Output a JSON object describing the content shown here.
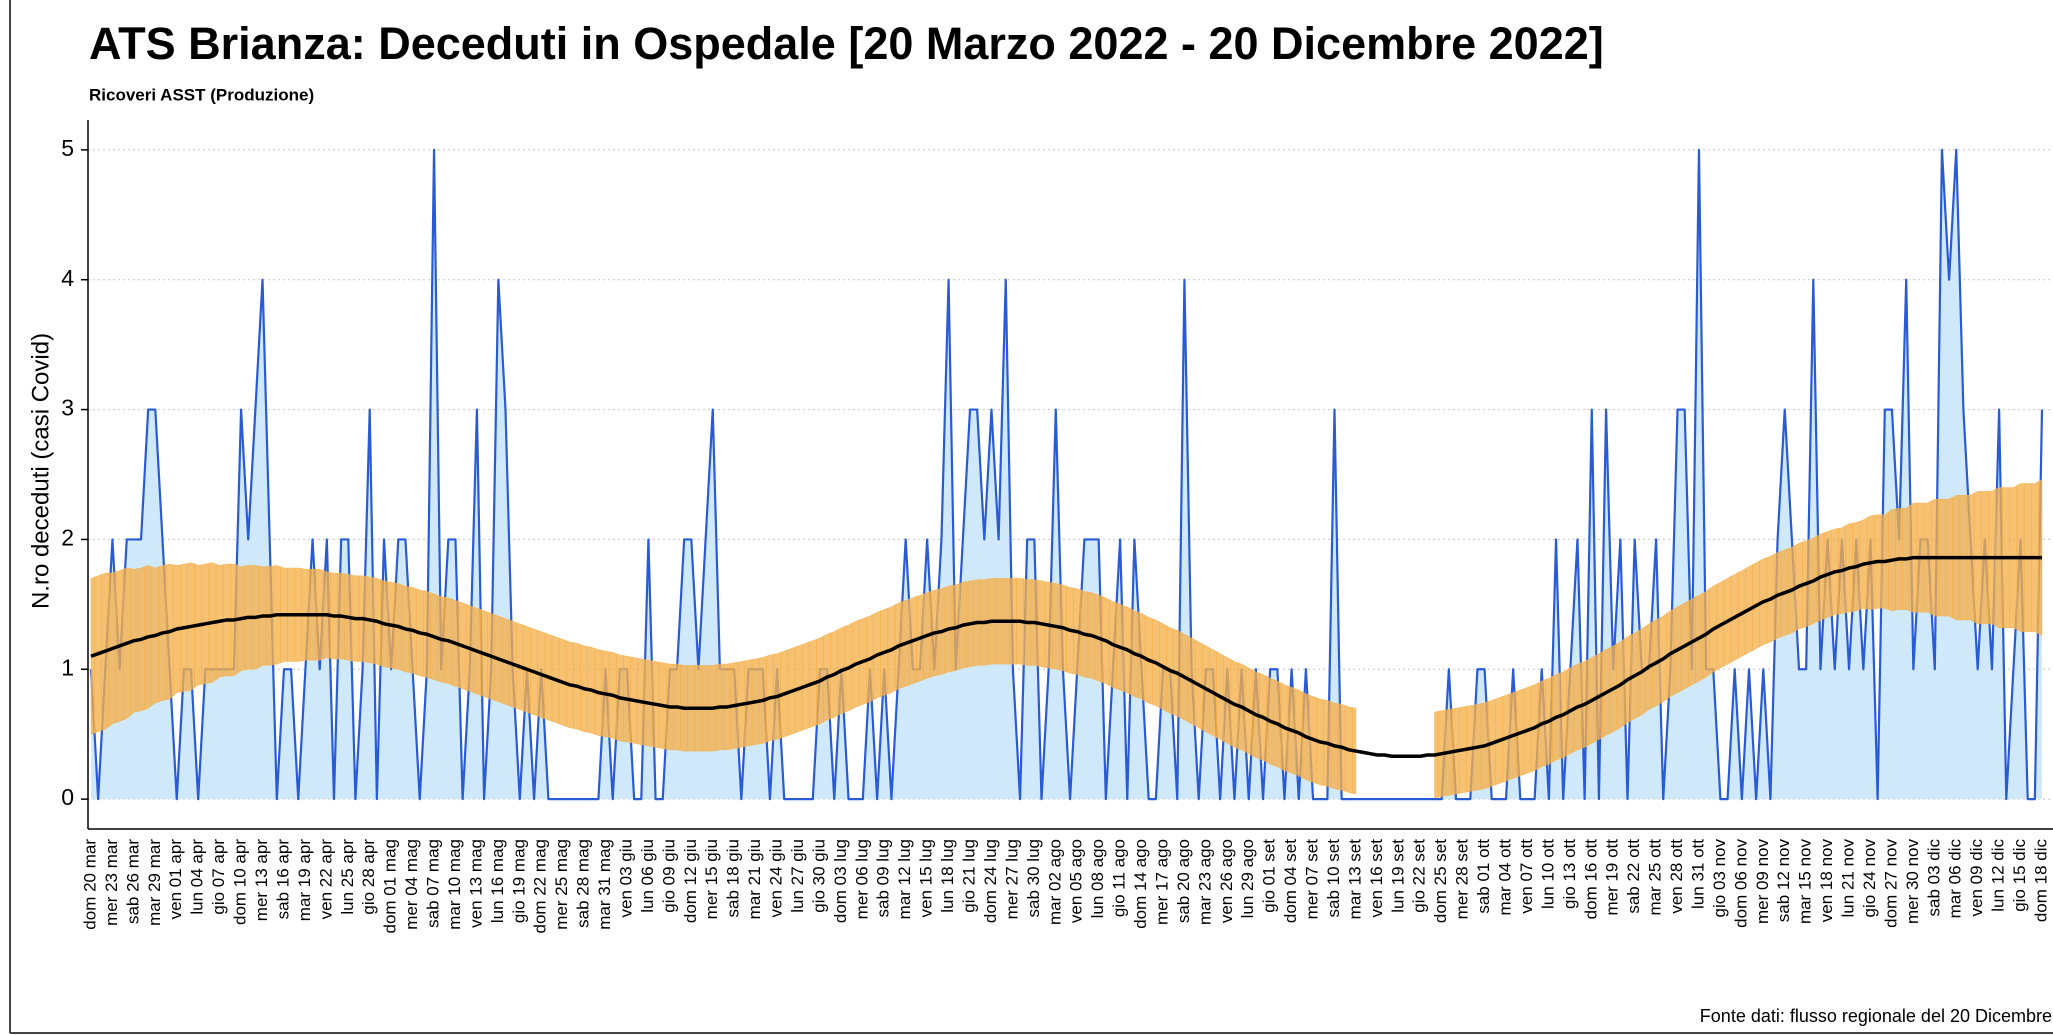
{
  "chart_data": {
    "type": "line",
    "title": "ATS Brianza: Deceduti in Ospedale [20 Marzo 2022 - 20 Dicembre 2022]",
    "subtitle": "Ricoveri ASST (Produzione)",
    "ylabel": "N.ro deceduti (casi Covid)",
    "source": "Fonte dati: flusso regionale del 20 Dicembre",
    "ylim": [
      -0.23,
      5.23
    ],
    "yticks": [
      0,
      1,
      2,
      3,
      4,
      5
    ],
    "grid": true,
    "categories": [
      "dom 20 mar",
      null,
      null,
      "mer 23 mar",
      null,
      null,
      "sab 26 mar",
      null,
      null,
      "mar 29 mar",
      null,
      null,
      "ven 01 apr",
      null,
      null,
      "lun 04 apr",
      null,
      null,
      "gio 07 apr",
      null,
      null,
      "dom 10 apr",
      null,
      null,
      "mer 13 apr",
      null,
      null,
      "sab 16 apr",
      null,
      null,
      "mar 19 apr",
      null,
      null,
      "ven 22 apr",
      null,
      null,
      "lun 25 apr",
      null,
      null,
      "gio 28 apr",
      null,
      null,
      "dom 01 mag",
      null,
      null,
      "mer 04 mag",
      null,
      null,
      "sab 07 mag",
      null,
      null,
      "mar 10 mag",
      null,
      null,
      "ven 13 mag",
      null,
      null,
      "lun 16 mag",
      null,
      null,
      "gio 19 mag",
      null,
      null,
      "dom 22 mag",
      null,
      null,
      "mer 25 mag",
      null,
      null,
      "sab 28 mag",
      null,
      null,
      "mar 31 mag",
      null,
      null,
      "ven 03 giu",
      null,
      null,
      "lun 06 giu",
      null,
      null,
      "gio 09 giu",
      null,
      null,
      "dom 12 giu",
      null,
      null,
      "mer 15 giu",
      null,
      null,
      "sab 18 giu",
      null,
      null,
      "mar 21 giu",
      null,
      null,
      "ven 24 giu",
      null,
      null,
      "lun 27 giu",
      null,
      null,
      "gio 30 giu",
      null,
      null,
      "dom 03 lug",
      null,
      null,
      "mer 06 lug",
      null,
      null,
      "sab 09 lug",
      null,
      null,
      "mar 12 lug",
      null,
      null,
      "ven 15 lug",
      null,
      null,
      "lun 18 lug",
      null,
      null,
      "gio 21 lug",
      null,
      null,
      "dom 24 lug",
      null,
      null,
      "mer 27 lug",
      null,
      null,
      "sab 30 lug",
      null,
      null,
      "mar 02 ago",
      null,
      null,
      "ven 05 ago",
      null,
      null,
      "lun 08 ago",
      null,
      null,
      "gio 11 ago",
      null,
      null,
      "dom 14 ago",
      null,
      null,
      "mer 17 ago",
      null,
      null,
      "sab 20 ago",
      null,
      null,
      "mar 23 ago",
      null,
      null,
      "ven 26 ago",
      null,
      null,
      "lun 29 ago",
      null,
      null,
      "gio 01 set",
      null,
      null,
      "dom 04 set",
      null,
      null,
      "mer 07 set",
      null,
      null,
      "sab 10 set",
      null,
      null,
      "mar 13 set",
      null,
      null,
      "ven 16 set",
      null,
      null,
      "lun 19 set",
      null,
      null,
      "gio 22 set",
      null,
      null,
      "dom 25 set",
      null,
      null,
      "mer 28 set",
      null,
      null,
      "sab 01 ott",
      null,
      null,
      "mar 04 ott",
      null,
      null,
      "ven 07 ott",
      null,
      null,
      "lun 10 ott",
      null,
      null,
      "gio 13 ott",
      null,
      null,
      "dom 16 ott",
      null,
      null,
      "mer 19 ott",
      null,
      null,
      "sab 22 ott",
      null,
      null,
      "mar 25 ott",
      null,
      null,
      "ven 28 ott",
      null,
      null,
      "lun 31 ott",
      null,
      null,
      "gio 03 nov",
      null,
      null,
      "dom 06 nov",
      null,
      null,
      "mer 09 nov",
      null,
      null,
      "sab 12 nov",
      null,
      null,
      "mar 15 nov",
      null,
      null,
      "ven 18 nov",
      null,
      null,
      "lun 21 nov",
      null,
      null,
      "gio 24 nov",
      null,
      null,
      "dom 27 nov",
      null,
      null,
      "mer 30 nov",
      null,
      null,
      "sab 03 dic",
      null,
      null,
      "mar 06 dic",
      null,
      null,
      "ven 09 dic",
      null,
      null,
      "lun 12 dic",
      null,
      null,
      "gio 15 dic",
      null,
      null,
      "dom 18 dic"
    ],
    "series": [
      {
        "color": "#2a5bd7",
        "fill": "#cfe9fa",
        "values": [
          1,
          0,
          1,
          2,
          1,
          2,
          2,
          2,
          3,
          3,
          2,
          1,
          0,
          1,
          1,
          0,
          1,
          1,
          1,
          1,
          1,
          3,
          2,
          3,
          4,
          2,
          0,
          1,
          1,
          0,
          1,
          2,
          1,
          2,
          0,
          2,
          2,
          0,
          1,
          3,
          0,
          2,
          1,
          2,
          2,
          1,
          0,
          1,
          5,
          1,
          2,
          2,
          0,
          1,
          3,
          0,
          1,
          4,
          3,
          1,
          0,
          1,
          0,
          1,
          0,
          0,
          0,
          0,
          0,
          0,
          0,
          0,
          1,
          0,
          1,
          1,
          0,
          0,
          2,
          0,
          0,
          1,
          1,
          2,
          2,
          1,
          2,
          3,
          1,
          1,
          1,
          0,
          1,
          1,
          1,
          0,
          1,
          0,
          0,
          0,
          0,
          0,
          1,
          1,
          0,
          1,
          0,
          0,
          0,
          1,
          0,
          1,
          0,
          1,
          2,
          1,
          1,
          2,
          1,
          2,
          4,
          1,
          2,
          3,
          3,
          2,
          3,
          2,
          4,
          1,
          0,
          2,
          2,
          0,
          1,
          3,
          1,
          0,
          1,
          2,
          2,
          2,
          0,
          1,
          2,
          0,
          2,
          1,
          0,
          0,
          1,
          1,
          0,
          4,
          1,
          0,
          1,
          1,
          0,
          1,
          0,
          1,
          0,
          1,
          0,
          1,
          1,
          0,
          1,
          0,
          1,
          0,
          0,
          0,
          3,
          0,
          0,
          0,
          0,
          0,
          0,
          0,
          0,
          0,
          0,
          0,
          0,
          0,
          0,
          0,
          1,
          0,
          0,
          0,
          1,
          1,
          0,
          0,
          0,
          1,
          0,
          0,
          0,
          1,
          0,
          2,
          0,
          1,
          2,
          0,
          3,
          0,
          3,
          1,
          2,
          0,
          2,
          1,
          1,
          2,
          0,
          1,
          3,
          3,
          1,
          5,
          1,
          1,
          0,
          0,
          1,
          0,
          1,
          0,
          1,
          0,
          2,
          3,
          2,
          1,
          1,
          4,
          1,
          2,
          1,
          2,
          1,
          2,
          1,
          2,
          0,
          3,
          3,
          2,
          4,
          1,
          2,
          2,
          1,
          5,
          4,
          5,
          3,
          2,
          1,
          2,
          1,
          3,
          0,
          1,
          2,
          0,
          0,
          3
        ]
      }
    ],
    "trend": {
      "color": "#000000",
      "band_color": "#f5b04a",
      "values": [
        1.1,
        1.12,
        1.14,
        1.16,
        1.18,
        1.2,
        1.22,
        1.23,
        1.25,
        1.26,
        1.28,
        1.29,
        1.31,
        1.32,
        1.33,
        1.34,
        1.35,
        1.36,
        1.37,
        1.38,
        1.38,
        1.39,
        1.4,
        1.4,
        1.41,
        1.41,
        1.42,
        1.42,
        1.42,
        1.42,
        1.42,
        1.42,
        1.42,
        1.42,
        1.41,
        1.41,
        1.4,
        1.39,
        1.39,
        1.38,
        1.37,
        1.35,
        1.34,
        1.33,
        1.31,
        1.3,
        1.28,
        1.27,
        1.25,
        1.23,
        1.22,
        1.2,
        1.18,
        1.16,
        1.14,
        1.12,
        1.1,
        1.08,
        1.06,
        1.04,
        1.02,
        1.0,
        0.98,
        0.96,
        0.94,
        0.92,
        0.9,
        0.88,
        0.87,
        0.85,
        0.84,
        0.82,
        0.81,
        0.8,
        0.78,
        0.77,
        0.76,
        0.75,
        0.74,
        0.73,
        0.72,
        0.71,
        0.71,
        0.7,
        0.7,
        0.7,
        0.7,
        0.7,
        0.71,
        0.71,
        0.72,
        0.73,
        0.74,
        0.75,
        0.76,
        0.78,
        0.79,
        0.81,
        0.83,
        0.85,
        0.87,
        0.89,
        0.91,
        0.94,
        0.96,
        0.99,
        1.01,
        1.04,
        1.06,
        1.08,
        1.11,
        1.13,
        1.15,
        1.18,
        1.2,
        1.22,
        1.24,
        1.26,
        1.28,
        1.29,
        1.31,
        1.32,
        1.34,
        1.35,
        1.36,
        1.36,
        1.37,
        1.37,
        1.37,
        1.37,
        1.37,
        1.36,
        1.36,
        1.35,
        1.34,
        1.33,
        1.32,
        1.3,
        1.29,
        1.27,
        1.26,
        1.24,
        1.22,
        1.19,
        1.17,
        1.15,
        1.12,
        1.1,
        1.07,
        1.05,
        1.02,
        0.99,
        0.97,
        0.94,
        0.91,
        0.88,
        0.85,
        0.82,
        0.79,
        0.76,
        0.73,
        0.71,
        0.68,
        0.65,
        0.63,
        0.6,
        0.58,
        0.55,
        0.53,
        0.51,
        0.48,
        0.46,
        0.44,
        0.43,
        0.41,
        0.4,
        0.38,
        0.37,
        0.36,
        0.35,
        0.34,
        0.34,
        0.33,
        0.33,
        0.33,
        0.33,
        0.33,
        0.34,
        0.34,
        0.35,
        0.36,
        0.37,
        0.38,
        0.39,
        0.4,
        0.41,
        0.43,
        0.45,
        0.47,
        0.49,
        0.51,
        0.53,
        0.55,
        0.58,
        0.6,
        0.63,
        0.65,
        0.68,
        0.71,
        0.73,
        0.76,
        0.79,
        0.82,
        0.85,
        0.88,
        0.92,
        0.95,
        0.98,
        1.02,
        1.05,
        1.08,
        1.12,
        1.15,
        1.18,
        1.21,
        1.24,
        1.27,
        1.31,
        1.34,
        1.37,
        1.4,
        1.43,
        1.46,
        1.49,
        1.52,
        1.54,
        1.57,
        1.59,
        1.61,
        1.64,
        1.66,
        1.68,
        1.71,
        1.73,
        1.75,
        1.76,
        1.78,
        1.79,
        1.81,
        1.82,
        1.83,
        1.83,
        1.84,
        1.85,
        1.85,
        1.86,
        1.86,
        1.86,
        1.86,
        1.86,
        1.86,
        1.86,
        1.86,
        1.86,
        1.86,
        1.86,
        1.86,
        1.86,
        1.86,
        1.86,
        1.86,
        1.86,
        1.86,
        1.86
      ],
      "error": [
        0.6,
        0.6,
        0.6,
        0.58,
        0.58,
        0.58,
        0.55,
        0.55,
        0.55,
        0.52,
        0.52,
        0.52,
        0.49,
        0.49,
        0.49,
        0.46,
        0.46,
        0.46,
        0.43,
        0.43,
        0.43,
        0.4,
        0.4,
        0.4,
        0.38,
        0.38,
        0.38,
        0.36,
        0.36,
        0.36,
        0.35,
        0.35,
        0.35,
        0.33,
        0.33,
        0.33,
        0.33,
        0.33,
        0.33,
        0.33,
        0.33,
        0.33,
        0.33,
        0.33,
        0.33,
        0.33,
        0.33,
        0.33,
        0.33,
        0.33,
        0.33,
        0.33,
        0.33,
        0.33,
        0.33,
        0.33,
        0.33,
        0.33,
        0.33,
        0.33,
        0.33,
        0.33,
        0.33,
        0.33,
        0.33,
        0.33,
        0.33,
        0.33,
        0.33,
        0.33,
        0.33,
        0.33,
        0.33,
        0.33,
        0.33,
        0.33,
        0.33,
        0.33,
        0.33,
        0.33,
        0.33,
        0.33,
        0.33,
        0.33,
        0.33,
        0.33,
        0.33,
        0.33,
        0.33,
        0.33,
        0.33,
        0.33,
        0.33,
        0.33,
        0.33,
        0.33,
        0.33,
        0.33,
        0.33,
        0.33,
        0.33,
        0.33,
        0.33,
        0.33,
        0.33,
        0.33,
        0.33,
        0.33,
        0.33,
        0.33,
        0.33,
        0.33,
        0.33,
        0.33,
        0.33,
        0.33,
        0.33,
        0.33,
        0.33,
        0.33,
        0.33,
        0.33,
        0.33,
        0.33,
        0.33,
        0.33,
        0.33,
        0.33,
        0.33,
        0.33,
        0.33,
        0.33,
        0.33,
        0.33,
        0.33,
        0.33,
        0.33,
        0.33,
        0.33,
        0.33,
        0.33,
        0.33,
        0.33,
        0.33,
        0.33,
        0.33,
        0.33,
        0.33,
        0.33,
        0.33,
        0.33,
        0.33,
        0.33,
        0.33,
        0.33,
        0.33,
        0.33,
        0.33,
        0.33,
        0.33,
        0.33,
        0.33,
        0.33,
        0.33,
        0.33,
        0.33,
        0.33,
        0.33,
        0.33,
        0.33,
        0.33,
        0.33,
        0.33,
        0.33,
        0.33,
        0.33,
        0.33,
        0.33,
        null,
        null,
        null,
        null,
        null,
        null,
        null,
        null,
        null,
        null,
        0.33,
        0.33,
        0.33,
        0.33,
        0.33,
        0.33,
        0.33,
        0.33,
        0.33,
        0.33,
        0.33,
        0.33,
        0.33,
        0.33,
        0.33,
        0.33,
        0.33,
        0.33,
        0.33,
        0.33,
        0.33,
        0.33,
        0.33,
        0.33,
        0.33,
        0.33,
        0.33,
        0.33,
        0.33,
        0.33,
        0.33,
        0.33,
        0.33,
        0.33,
        0.33,
        0.33,
        0.33,
        0.33,
        0.33,
        0.33,
        0.33,
        0.33,
        0.33,
        0.33,
        0.33,
        0.33,
        0.33,
        0.33,
        0.33,
        0.33,
        0.33,
        0.33,
        0.33,
        0.33,
        0.33,
        0.33,
        0.33,
        0.33,
        0.34,
        0.34,
        0.34,
        0.36,
        0.36,
        0.36,
        0.39,
        0.39,
        0.39,
        0.42,
        0.42,
        0.42,
        0.45,
        0.45,
        0.45,
        0.48,
        0.48,
        0.48,
        0.51,
        0.51,
        0.51,
        0.54,
        0.54,
        0.54,
        0.57,
        0.57,
        0.57,
        0.6
      ]
    }
  }
}
